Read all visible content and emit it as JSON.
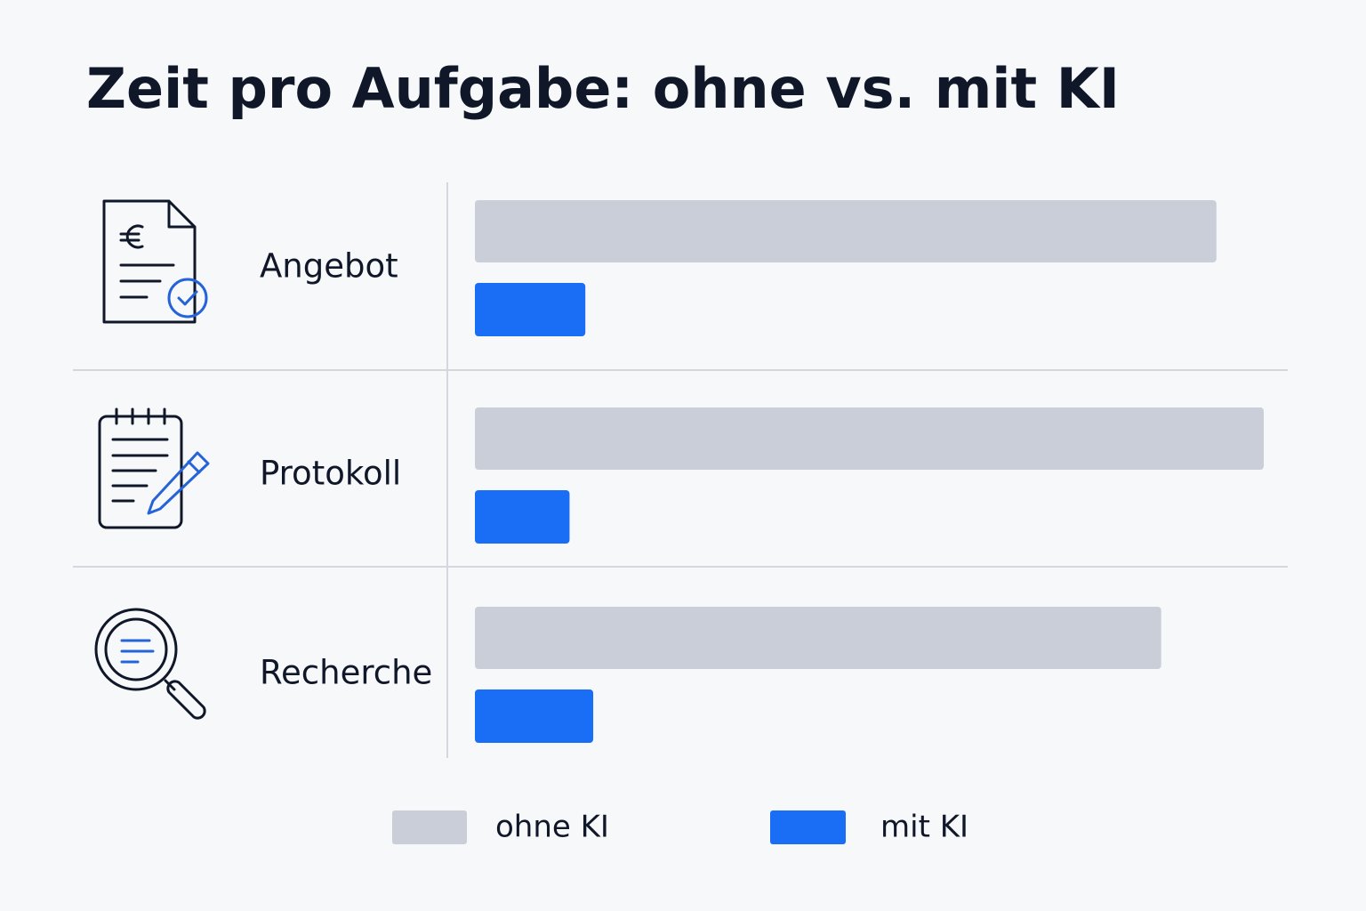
{
  "chart_data": {
    "type": "bar",
    "orientation": "horizontal",
    "title": "Zeit pro Aufgabe: ohne vs. mit KI",
    "categories": [
      "Angebot",
      "Protokoll",
      "Recherche"
    ],
    "series": [
      {
        "name": "ohne KI",
        "color": "#c9ced8",
        "values": [
          94,
          100,
          87
        ]
      },
      {
        "name": "mit KI",
        "color": "#1a6ef5",
        "values": [
          14,
          12,
          15
        ]
      }
    ],
    "xlim": [
      0,
      100
    ]
  }
}
